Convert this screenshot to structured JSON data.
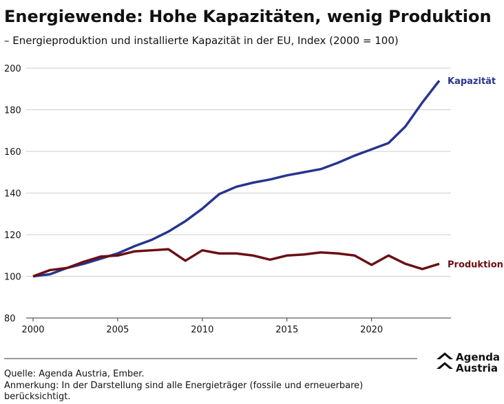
{
  "chart_data": {
    "type": "line",
    "title": "Energiewende: Hohe Kapazitäten, wenig Produktion",
    "subtitle": "– Energieproduktion und installierte Kapazität in der EU, Index (2000 = 100)",
    "x": [
      2000,
      2001,
      2002,
      2003,
      2004,
      2005,
      2006,
      2007,
      2008,
      2009,
      2010,
      2011,
      2012,
      2013,
      2014,
      2015,
      2016,
      2017,
      2018,
      2019,
      2020,
      2021,
      2022,
      2023,
      2024
    ],
    "series": [
      {
        "name": "Kapazität",
        "color": "#26358f",
        "values": [
          100,
          101,
          104,
          106,
          108.5,
          111,
          114.5,
          117.5,
          121.5,
          126.5,
          132.5,
          139.5,
          143,
          145,
          146.5,
          148.5,
          150,
          151.5,
          154.5,
          158,
          161,
          164,
          172,
          183.5,
          194
        ]
      },
      {
        "name": "Produktion",
        "color": "#6b0f14",
        "values": [
          100,
          103,
          104,
          107,
          109.5,
          110,
          112,
          112.5,
          113,
          107.5,
          112.5,
          111,
          111,
          110,
          108,
          110,
          110.5,
          111.5,
          111,
          110,
          105.5,
          110,
          106,
          103.5,
          106
        ]
      }
    ],
    "xlim": [
      2000,
      2024
    ],
    "xticks": [
      2000,
      2005,
      2010,
      2015,
      2020
    ],
    "ylim": [
      80,
      200
    ],
    "yticks": [
      80,
      100,
      120,
      140,
      160,
      180,
      200
    ],
    "grid": true,
    "source": "Quelle: Agenda Austria, Ember.",
    "note": "Anmerkung: In der Darstellung sind alle Energieträger (fossile und erneuerbare) berücksichtigt."
  },
  "logo": [
    "Agenda",
    "Austria"
  ]
}
